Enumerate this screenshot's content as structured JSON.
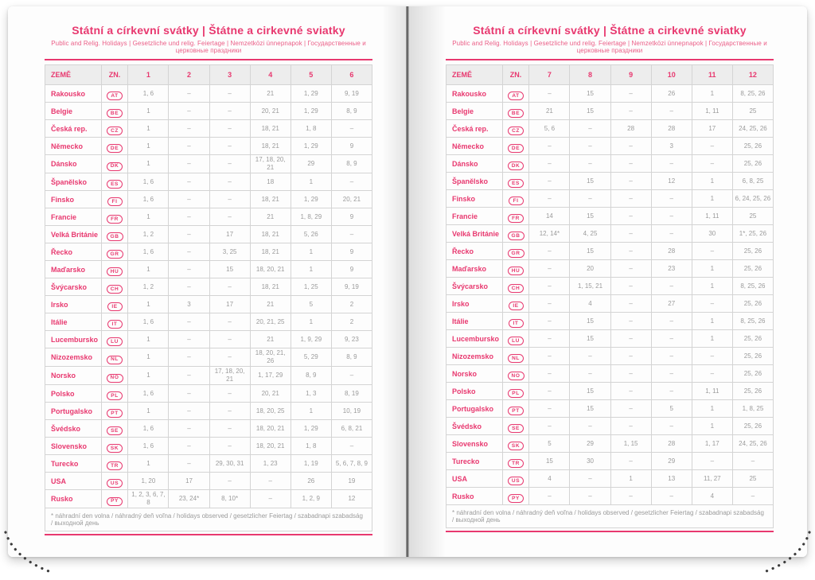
{
  "brand_color": "#e8386f",
  "footnote": "* náhradní den volna / náhradný deň voľna / holidays observed / gesetzlicher Feiertag / szabadnapi szabadság / выходной день",
  "pages": [
    {
      "title": "Státní a církevní svátky | Štátne a cirkevné sviatky",
      "subtitle": "Public and Relig. Holidays | Gesetzliche und relig. Feiertage | Nemzetközi ünnepnapok | Государственные и церковные праздники",
      "columns": [
        "ZEMĚ",
        "ZN.",
        "1",
        "2",
        "3",
        "4",
        "5",
        "6"
      ],
      "rows": [
        {
          "country": "Rakousko",
          "code": "AT",
          "days": [
            "1, 6",
            "–",
            "–",
            "21",
            "1, 29",
            "9, 19"
          ]
        },
        {
          "country": "Belgie",
          "code": "BE",
          "days": [
            "1",
            "–",
            "–",
            "20, 21",
            "1, 29",
            "8, 9"
          ]
        },
        {
          "country": "Česká rep.",
          "code": "CZ",
          "days": [
            "1",
            "–",
            "–",
            "18, 21",
            "1, 8",
            "–"
          ]
        },
        {
          "country": "Německo",
          "code": "DE",
          "days": [
            "1",
            "–",
            "–",
            "18, 21",
            "1, 29",
            "9"
          ]
        },
        {
          "country": "Dánsko",
          "code": "DK",
          "days": [
            "1",
            "–",
            "–",
            "17, 18, 20, 21",
            "29",
            "8, 9"
          ]
        },
        {
          "country": "Španělsko",
          "code": "ES",
          "days": [
            "1, 6",
            "–",
            "–",
            "18",
            "1",
            "–"
          ]
        },
        {
          "country": "Finsko",
          "code": "FI",
          "days": [
            "1, 6",
            "–",
            "–",
            "18, 21",
            "1, 29",
            "20, 21"
          ]
        },
        {
          "country": "Francie",
          "code": "FR",
          "days": [
            "1",
            "–",
            "–",
            "21",
            "1, 8, 29",
            "9"
          ]
        },
        {
          "country": "Velká Británie",
          "code": "GB",
          "days": [
            "1, 2",
            "–",
            "17",
            "18, 21",
            "5, 26",
            "–"
          ]
        },
        {
          "country": "Řecko",
          "code": "GR",
          "days": [
            "1, 6",
            "–",
            "3, 25",
            "18, 21",
            "1",
            "9"
          ]
        },
        {
          "country": "Maďarsko",
          "code": "HU",
          "days": [
            "1",
            "–",
            "15",
            "18, 20, 21",
            "1",
            "9"
          ]
        },
        {
          "country": "Švýcarsko",
          "code": "CH",
          "days": [
            "1, 2",
            "–",
            "–",
            "18, 21",
            "1, 25",
            "9, 19"
          ]
        },
        {
          "country": "Irsko",
          "code": "IE",
          "days": [
            "1",
            "3",
            "17",
            "21",
            "5",
            "2"
          ]
        },
        {
          "country": "Itálie",
          "code": "IT",
          "days": [
            "1, 6",
            "–",
            "–",
            "20, 21, 25",
            "1",
            "2"
          ]
        },
        {
          "country": "Lucembursko",
          "code": "LU",
          "days": [
            "1",
            "–",
            "–",
            "21",
            "1, 9, 29",
            "9, 23"
          ]
        },
        {
          "country": "Nizozemsko",
          "code": "NL",
          "days": [
            "1",
            "–",
            "–",
            "18, 20, 21, 26",
            "5, 29",
            "8, 9"
          ]
        },
        {
          "country": "Norsko",
          "code": "NO",
          "days": [
            "1",
            "–",
            "17, 18, 20, 21",
            "1, 17, 29",
            "8, 9",
            "–"
          ]
        },
        {
          "country": "Polsko",
          "code": "PL",
          "days": [
            "1, 6",
            "–",
            "–",
            "20, 21",
            "1, 3",
            "8, 19"
          ]
        },
        {
          "country": "Portugalsko",
          "code": "PT",
          "days": [
            "1",
            "–",
            "–",
            "18, 20, 25",
            "1",
            "10, 19"
          ]
        },
        {
          "country": "Švédsko",
          "code": "SE",
          "days": [
            "1, 6",
            "–",
            "–",
            "18, 20, 21",
            "1, 29",
            "6, 8, 21"
          ]
        },
        {
          "country": "Slovensko",
          "code": "SK",
          "days": [
            "1, 6",
            "–",
            "–",
            "18, 20, 21",
            "1, 8",
            "–"
          ]
        },
        {
          "country": "Turecko",
          "code": "TR",
          "days": [
            "1",
            "–",
            "29, 30, 31",
            "1, 23",
            "1, 19",
            "5, 6, 7, 8, 9"
          ]
        },
        {
          "country": "USA",
          "code": "US",
          "days": [
            "1, 20",
            "17",
            "–",
            "–",
            "26",
            "19"
          ]
        },
        {
          "country": "Rusko",
          "code": "PY",
          "days": [
            "1, 2, 3, 6, 7, 8",
            "23, 24*",
            "8, 10*",
            "–",
            "1, 2, 9",
            "12"
          ]
        }
      ]
    },
    {
      "title": "Státní a církevní svátky | Štátne a cirkevné sviatky",
      "subtitle": "Public and Relig. Holidays | Gesetzliche und relig. Feiertage | Nemzetközi ünnepnapok | Государственные и церковные праздники",
      "columns": [
        "ZEMĚ",
        "ZN.",
        "7",
        "8",
        "9",
        "10",
        "11",
        "12"
      ],
      "rows": [
        {
          "country": "Rakousko",
          "code": "AT",
          "days": [
            "–",
            "15",
            "–",
            "26",
            "1",
            "8, 25, 26"
          ]
        },
        {
          "country": "Belgie",
          "code": "BE",
          "days": [
            "21",
            "15",
            "–",
            "–",
            "1, 11",
            "25"
          ]
        },
        {
          "country": "Česká rep.",
          "code": "CZ",
          "days": [
            "5, 6",
            "–",
            "28",
            "28",
            "17",
            "24, 25, 26"
          ]
        },
        {
          "country": "Německo",
          "code": "DE",
          "days": [
            "–",
            "–",
            "–",
            "3",
            "–",
            "25, 26"
          ]
        },
        {
          "country": "Dánsko",
          "code": "DK",
          "days": [
            "–",
            "–",
            "–",
            "–",
            "–",
            "25, 26"
          ]
        },
        {
          "country": "Španělsko",
          "code": "ES",
          "days": [
            "–",
            "15",
            "–",
            "12",
            "1",
            "6, 8, 25"
          ]
        },
        {
          "country": "Finsko",
          "code": "FI",
          "days": [
            "–",
            "–",
            "–",
            "–",
            "1",
            "6, 24, 25, 26"
          ]
        },
        {
          "country": "Francie",
          "code": "FR",
          "days": [
            "14",
            "15",
            "–",
            "–",
            "1, 11",
            "25"
          ]
        },
        {
          "country": "Velká Británie",
          "code": "GB",
          "days": [
            "12, 14*",
            "4, 25",
            "–",
            "–",
            "30",
            "1*, 25, 26"
          ]
        },
        {
          "country": "Řecko",
          "code": "GR",
          "days": [
            "–",
            "15",
            "–",
            "28",
            "–",
            "25, 26"
          ]
        },
        {
          "country": "Maďarsko",
          "code": "HU",
          "days": [
            "–",
            "20",
            "–",
            "23",
            "1",
            "25, 26"
          ]
        },
        {
          "country": "Švýcarsko",
          "code": "CH",
          "days": [
            "–",
            "1, 15, 21",
            "–",
            "–",
            "1",
            "8, 25, 26"
          ]
        },
        {
          "country": "Irsko",
          "code": "IE",
          "days": [
            "–",
            "4",
            "–",
            "27",
            "–",
            "25, 26"
          ]
        },
        {
          "country": "Itálie",
          "code": "IT",
          "days": [
            "–",
            "15",
            "–",
            "–",
            "1",
            "8, 25, 26"
          ]
        },
        {
          "country": "Lucembursko",
          "code": "LU",
          "days": [
            "–",
            "15",
            "–",
            "–",
            "1",
            "25, 26"
          ]
        },
        {
          "country": "Nizozemsko",
          "code": "NL",
          "days": [
            "–",
            "–",
            "–",
            "–",
            "–",
            "25, 26"
          ]
        },
        {
          "country": "Norsko",
          "code": "NO",
          "days": [
            "–",
            "–",
            "–",
            "–",
            "–",
            "25, 26"
          ]
        },
        {
          "country": "Polsko",
          "code": "PL",
          "days": [
            "–",
            "15",
            "–",
            "–",
            "1, 11",
            "25, 26"
          ]
        },
        {
          "country": "Portugalsko",
          "code": "PT",
          "days": [
            "–",
            "15",
            "–",
            "5",
            "1",
            "1, 8, 25"
          ]
        },
        {
          "country": "Švédsko",
          "code": "SE",
          "days": [
            "–",
            "–",
            "–",
            "–",
            "1",
            "25, 26"
          ]
        },
        {
          "country": "Slovensko",
          "code": "SK",
          "days": [
            "5",
            "29",
            "1, 15",
            "28",
            "1, 17",
            "24, 25, 26"
          ]
        },
        {
          "country": "Turecko",
          "code": "TR",
          "days": [
            "15",
            "30",
            "–",
            "29",
            "–",
            "–"
          ]
        },
        {
          "country": "USA",
          "code": "US",
          "days": [
            "4",
            "–",
            "1",
            "13",
            "11, 27",
            "25"
          ]
        },
        {
          "country": "Rusko",
          "code": "PY",
          "days": [
            "–",
            "–",
            "–",
            "–",
            "4",
            "–"
          ]
        }
      ]
    }
  ]
}
